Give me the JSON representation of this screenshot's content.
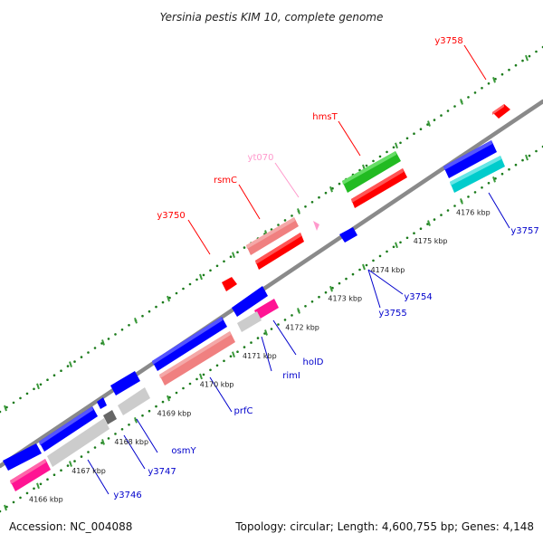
{
  "title": "Yersinia pestis KIM 10, complete genome",
  "accession_text": "Accession: NC_004088",
  "summary_text": "Topology: circular; Length: 4,600,755 bp; Genes: 4,148",
  "colors": {
    "backbone": "#8a8a8a",
    "dots": "#1a7a1a",
    "tick_line": "#3a9a3a",
    "red": "#ff0000",
    "blue": "#0000ff",
    "pink_light": "#f08080",
    "pink_label": "#ff99cc",
    "magenta": "#ff1493",
    "green": "#22bb22",
    "cyan": "#00cccc",
    "light_gray": "#cccccc",
    "dark_gray": "#666666"
  },
  "scale": {
    "ticks": [
      {
        "label": "4166 kbp"
      },
      {
        "label": "4167 kbp"
      },
      {
        "label": "4168 kbp"
      },
      {
        "label": "4169 kbp"
      },
      {
        "label": "4170 kbp"
      },
      {
        "label": "4171 kbp"
      },
      {
        "label": "4172 kbp"
      },
      {
        "label": "4173 kbp"
      },
      {
        "label": "4174 kbp"
      },
      {
        "label": "4175 kbp"
      },
      {
        "label": "4176 kbp"
      }
    ]
  },
  "genes": {
    "y3758": "y3758",
    "hmsT": "hmsT",
    "yt070": "yt070",
    "rsmC": "rsmC",
    "y3750": "y3750",
    "y3757": "y3757",
    "y3754": "y3754",
    "y3755": "y3755",
    "holD": "holD",
    "rimI": "rimI",
    "prfC": "prfC",
    "osmY": "osmY",
    "y3747": "y3747",
    "y3746": "y3746"
  }
}
